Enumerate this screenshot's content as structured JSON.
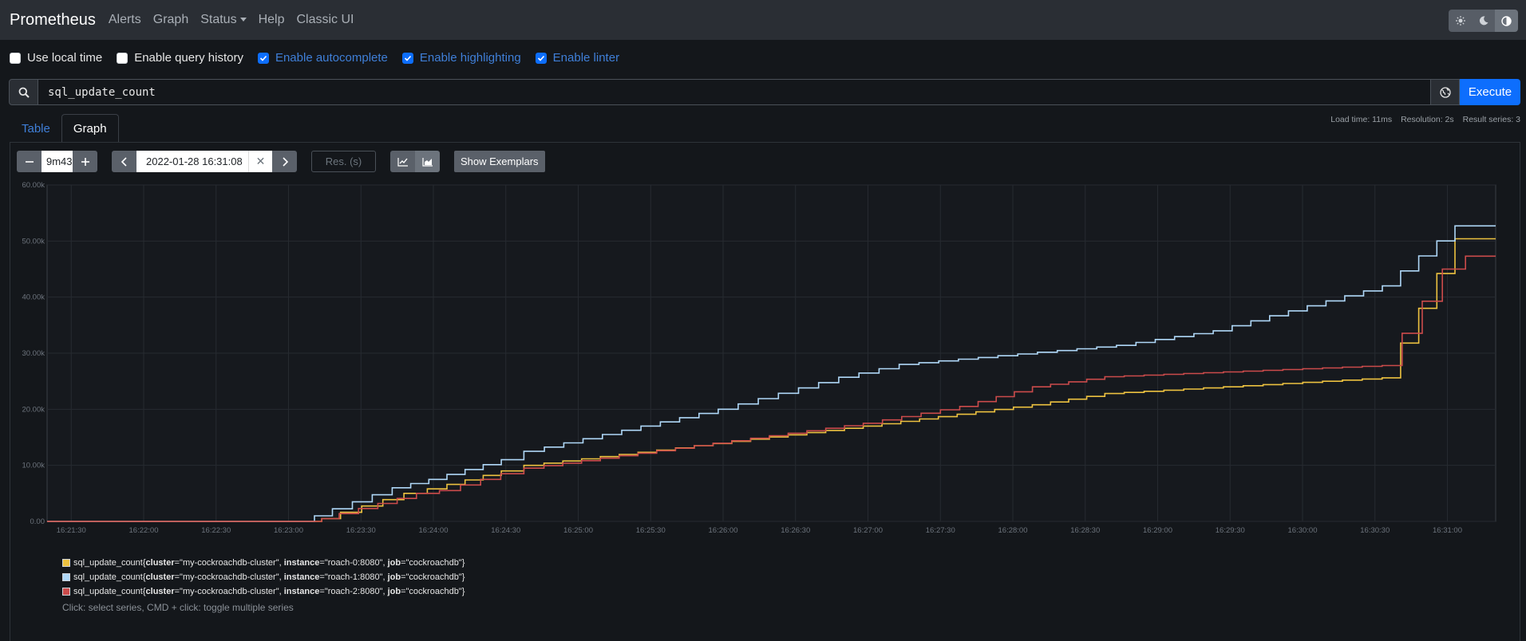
{
  "nav": {
    "brand": "Prometheus",
    "links": [
      "Alerts",
      "Graph",
      "Status",
      "Help",
      "Classic UI"
    ]
  },
  "theme": {
    "icons": [
      "sun-icon",
      "moon-icon",
      "contrast-icon"
    ],
    "selected": "contrast"
  },
  "options": [
    {
      "label": "Use local time",
      "checked": false
    },
    {
      "label": "Enable query history",
      "checked": false
    },
    {
      "label": "Enable autocomplete",
      "checked": true
    },
    {
      "label": "Enable highlighting",
      "checked": true
    },
    {
      "label": "Enable linter",
      "checked": true
    }
  ],
  "query": {
    "expression": "sql_update_count",
    "execute_label": "Execute"
  },
  "tabs": {
    "table": "Table",
    "graph": "Graph",
    "active": "Graph"
  },
  "stats": {
    "load_time": "Load time: 11ms",
    "resolution": "Resolution: 2s",
    "result_series": "Result series: 3"
  },
  "graph_controls": {
    "range": "9m43",
    "end_time": "2022-01-28 16:31:08",
    "resolution_placeholder": "Res. (s)",
    "exemplars_label": "Show Exemplars"
  },
  "legend": [
    {
      "metric": "sql_update_count{",
      "cluster": "\"my-cockroachdb-cluster\"",
      "instance": "\"roach-0:8080\"",
      "job": "\"cockroachdb\"",
      "color": "#edc240"
    },
    {
      "metric": "sql_update_count{",
      "cluster": "\"my-cockroachdb-cluster\"",
      "instance": "\"roach-1:8080\"",
      "job": "\"cockroachdb\"",
      "color": "#afd8f8"
    },
    {
      "metric": "sql_update_count{",
      "cluster": "\"my-cockroachdb-cluster\"",
      "instance": "\"roach-2:8080\"",
      "job": "\"cockroachdb\"",
      "color": "#cb4b4b"
    }
  ],
  "hint": "Click: select series, CMD + click: toggle multiple series",
  "chart_data": {
    "type": "line",
    "x_ticks": [
      "16:21:30",
      "16:22:00",
      "16:22:30",
      "16:23:00",
      "16:23:30",
      "16:24:00",
      "16:24:30",
      "16:25:00",
      "16:25:30",
      "16:26:00",
      "16:26:30",
      "16:27:00",
      "16:27:30",
      "16:28:00",
      "16:28:30",
      "16:29:00",
      "16:29:30",
      "16:30:00",
      "16:30:30",
      "16:31:00"
    ],
    "y_ticks": [
      "0.00",
      "10.00k",
      "20.00k",
      "30.00k",
      "40.00k",
      "50.00k",
      "60.00k"
    ],
    "x_range_seconds": [
      -10,
      590
    ],
    "ylim": [
      0,
      60000
    ],
    "grid": true,
    "series": [
      {
        "color": "#edc240",
        "style": "step",
        "x": [
          -10,
          100,
          105,
          140,
          150,
          180,
          190,
          330,
          400,
          430,
          545,
          575,
          590
        ],
        "y": [
          0,
          0,
          500,
          5000,
          5800,
          9000,
          10000,
          17000,
          20800,
          22800,
          25600,
          50400,
          50400
        ]
      },
      {
        "color": "#afd8f8",
        "style": "step",
        "x": [
          -10,
          97,
          102,
          135,
          150,
          180,
          190,
          270,
          320,
          345,
          435,
          475,
          545,
          575,
          590
        ],
        "y": [
          0,
          0,
          1000,
          6000,
          7500,
          11000,
          12500,
          20000,
          25700,
          28000,
          31400,
          34000,
          42000,
          52700,
          52700
        ]
      },
      {
        "color": "#cb4b4b",
        "style": "step",
        "x": [
          -10,
          100,
          105,
          145,
          155,
          180,
          190,
          330,
          370,
          400,
          430,
          545,
          570,
          580,
          590
        ],
        "y": [
          0,
          0,
          500,
          5000,
          5500,
          8500,
          9500,
          17500,
          20500,
          24000,
          25800,
          27800,
          45000,
          47300,
          47300
        ]
      }
    ]
  }
}
